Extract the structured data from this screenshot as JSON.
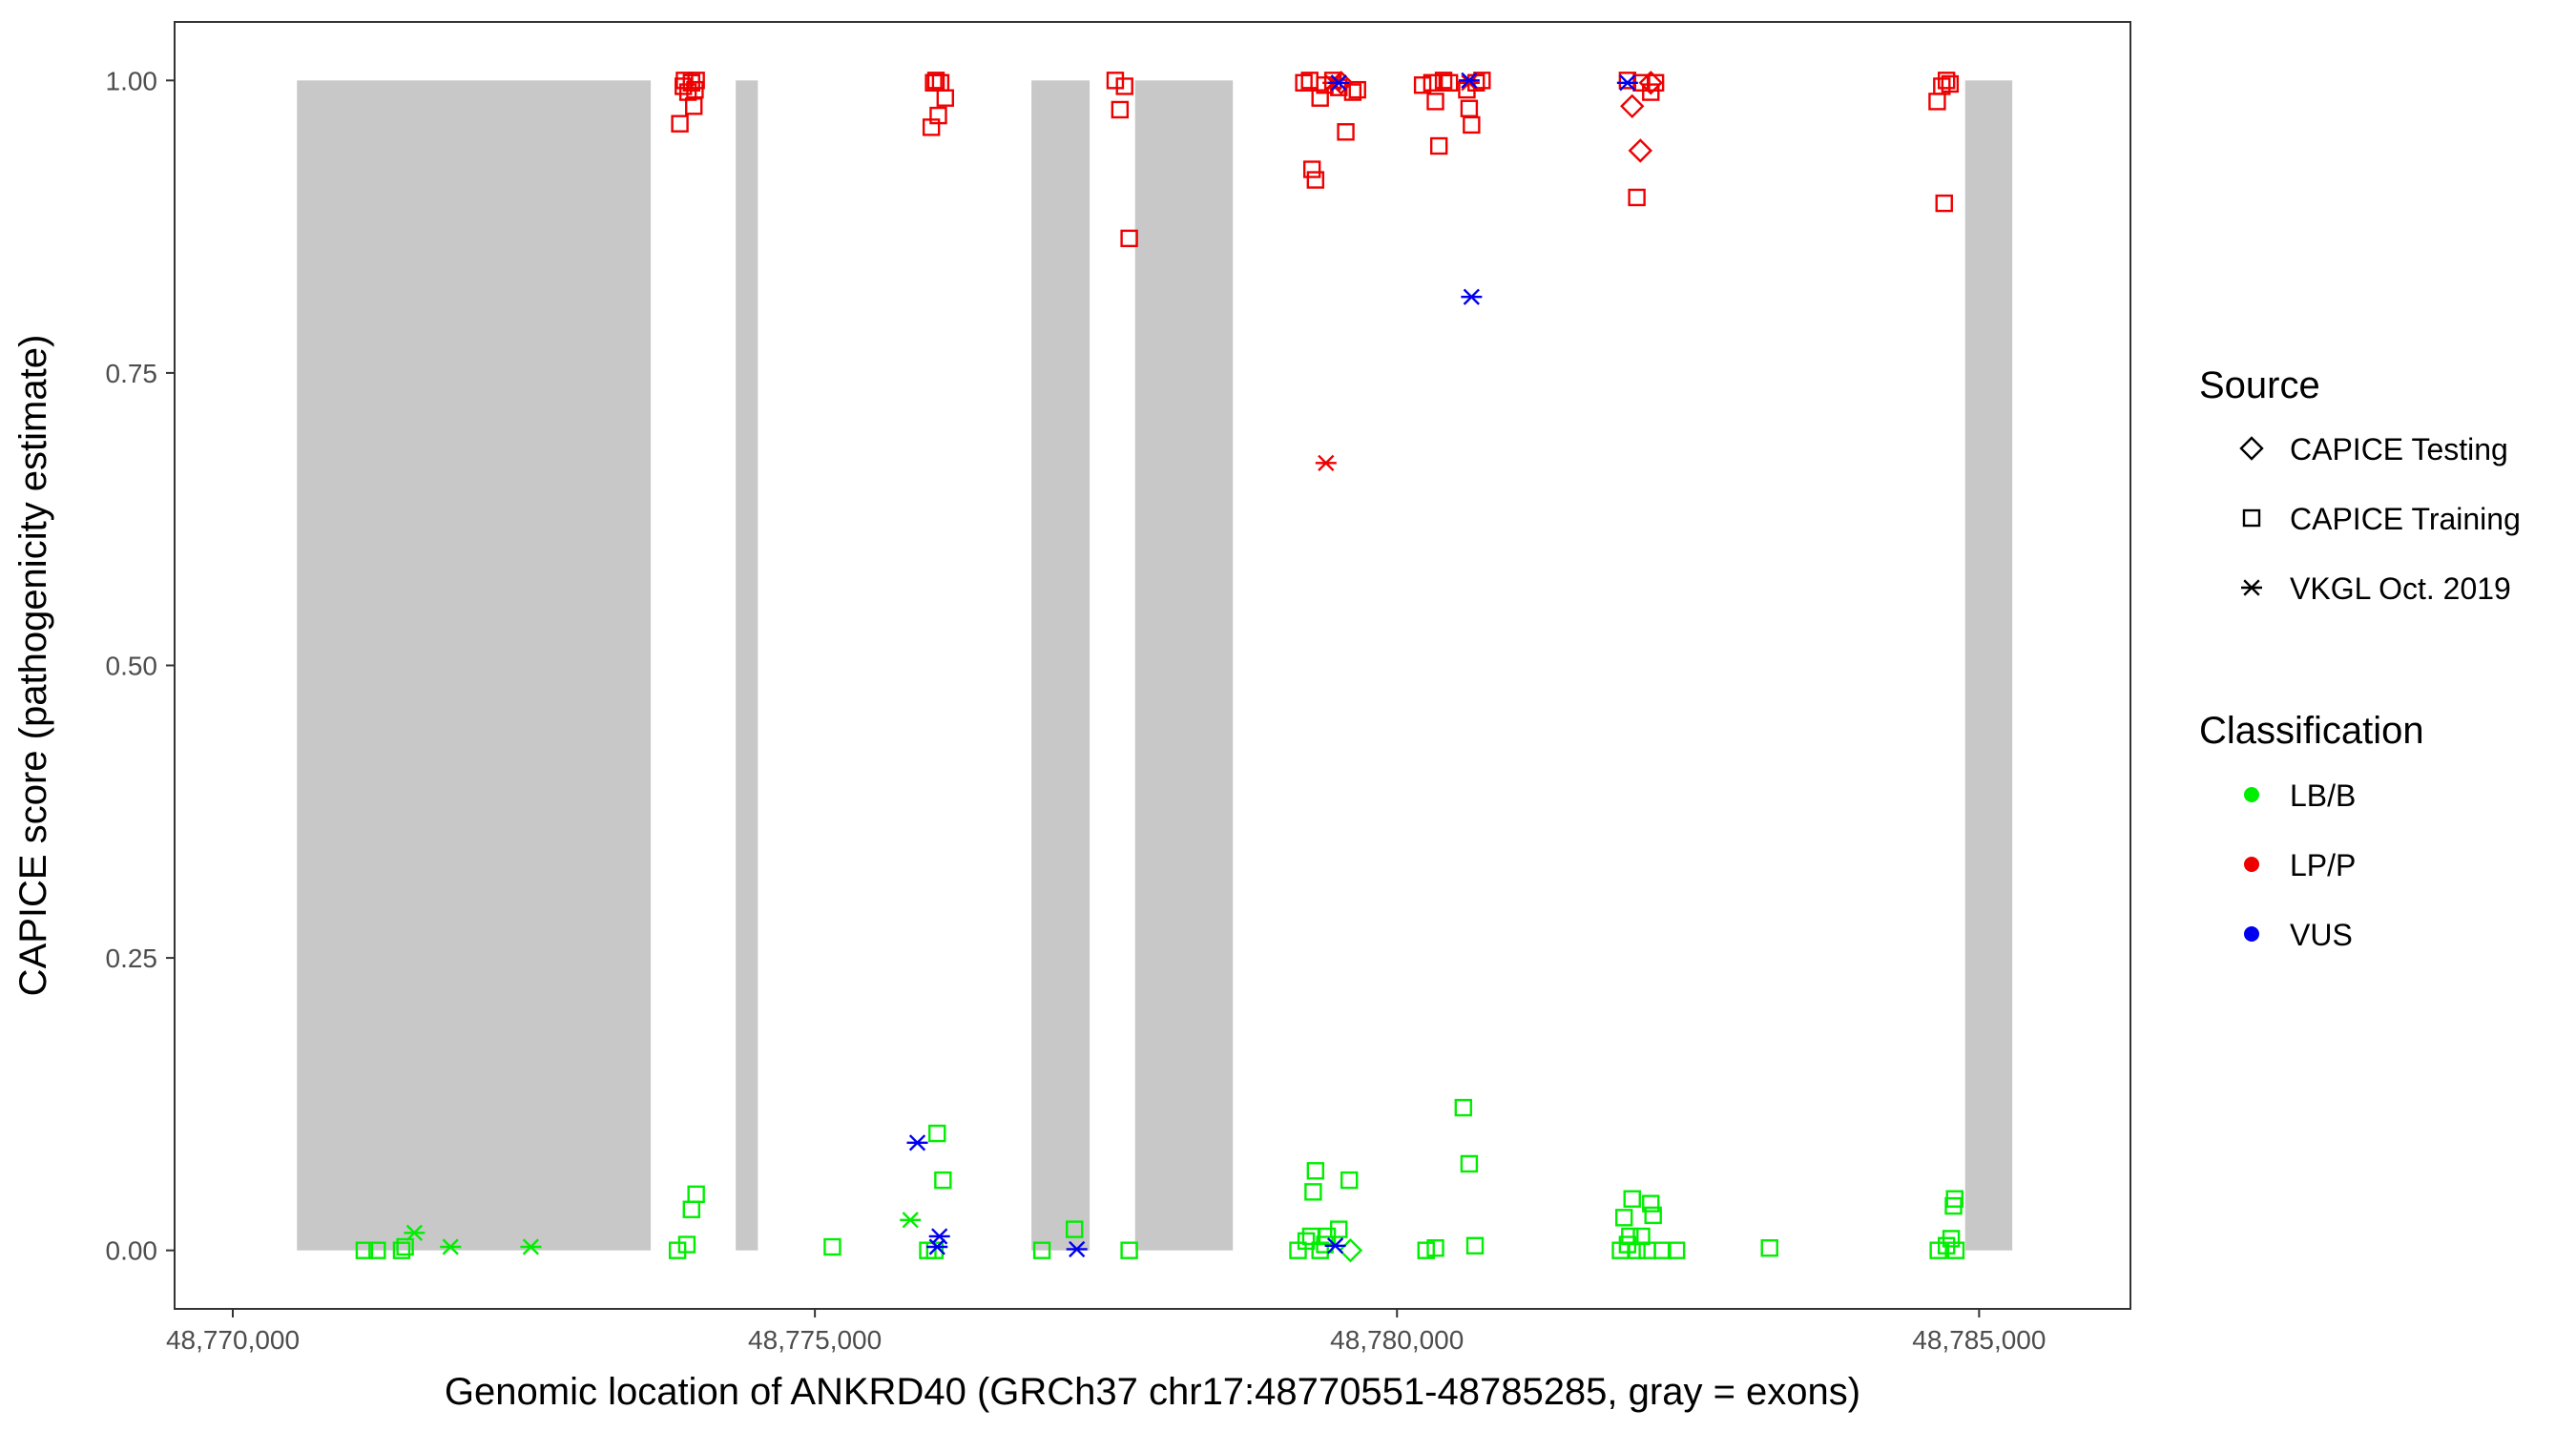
{
  "chart_data": {
    "type": "scatter",
    "title": "",
    "xlabel": "Genomic location of ANKRD40 (GRCh37 chr17:48770551-48785285, gray = exons)",
    "ylabel": "CAPICE score (pathogenicity estimate)",
    "xlim": [
      48769500,
      48786300
    ],
    "ylim": [
      -0.05,
      1.05
    ],
    "x_ticks": [
      48770000,
      48775000,
      48780000,
      48785000
    ],
    "x_tick_labels": [
      "48,770,000",
      "48,775,000",
      "48,780,000",
      "48,785,000"
    ],
    "y_ticks": [
      0,
      0.25,
      0.5,
      0.75,
      1.0
    ],
    "y_tick_labels": [
      "0.00",
      "0.25",
      "0.50",
      "0.75",
      "1.00"
    ],
    "grid": false,
    "exons": [
      [
        48770551,
        48773590
      ],
      [
        48774320,
        48774510
      ],
      [
        48776860,
        48777360
      ],
      [
        48777750,
        48778590
      ],
      [
        48784880,
        48785285
      ]
    ],
    "colors": {
      "LB/B": "#00ee00",
      "LP/P": "#ee0000",
      "VUS": "#0000ee",
      "exon": "#c8c8c8"
    },
    "legend": {
      "placement": "right",
      "source_title": "Source",
      "source_items": [
        {
          "label": "CAPICE Testing",
          "shape": "diamond"
        },
        {
          "label": "CAPICE Training",
          "shape": "square"
        },
        {
          "label": "VKGL Oct. 2019",
          "shape": "asterisk"
        }
      ],
      "class_title": "Classification",
      "class_items": [
        {
          "label": "LB/B",
          "color": "#00ee00"
        },
        {
          "label": "LP/P",
          "color": "#ee0000"
        },
        {
          "label": "VUS",
          "color": "#0000ee"
        }
      ]
    },
    "series": [
      {
        "source": "CAPICE Training",
        "classification": "LB/B",
        "points": [
          [
            48771130,
            0.0
          ],
          [
            48771240,
            0.0
          ],
          [
            48771450,
            0.0
          ],
          [
            48771480,
            0.003
          ],
          [
            48773820,
            0.0
          ],
          [
            48773900,
            0.005
          ],
          [
            48773940,
            0.035
          ],
          [
            48773980,
            0.048
          ],
          [
            48775150,
            0.003
          ],
          [
            48775970,
            0.0
          ],
          [
            48776030,
            0.0
          ],
          [
            48776050,
            0.1
          ],
          [
            48776100,
            0.06
          ],
          [
            48776950,
            0.0
          ],
          [
            48777230,
            0.018
          ],
          [
            48777700,
            0.0
          ],
          [
            48779150,
            0.0
          ],
          [
            48779220,
            0.008
          ],
          [
            48779260,
            0.012
          ],
          [
            48779280,
            0.05
          ],
          [
            48779300,
            0.068
          ],
          [
            48779340,
            0.0
          ],
          [
            48779380,
            0.005
          ],
          [
            48779400,
            0.012
          ],
          [
            48779500,
            0.018
          ],
          [
            48779590,
            0.06
          ],
          [
            48780250,
            0.0
          ],
          [
            48780330,
            0.002
          ],
          [
            48780570,
            0.122
          ],
          [
            48780620,
            0.074
          ],
          [
            48780670,
            0.004
          ],
          [
            48781920,
            0.0
          ],
          [
            48781950,
            0.028
          ],
          [
            48781980,
            0.005
          ],
          [
            48782000,
            0.012
          ],
          [
            48782020,
            0.044
          ],
          [
            48782060,
            0.0
          ],
          [
            48782100,
            0.012
          ],
          [
            48782150,
            0.0
          ],
          [
            48782180,
            0.04
          ],
          [
            48782200,
            0.03
          ],
          [
            48782280,
            0.0
          ],
          [
            48782400,
            0.0
          ],
          [
            48783200,
            0.002
          ],
          [
            48784650,
            0.0
          ],
          [
            48784720,
            0.004
          ],
          [
            48784760,
            0.01
          ],
          [
            48784780,
            0.038
          ],
          [
            48784790,
            0.044
          ],
          [
            48784800,
            0.0
          ]
        ]
      },
      {
        "source": "CAPICE Training",
        "classification": "LP/P",
        "points": [
          [
            48773840,
            0.963
          ],
          [
            48773870,
            0.995
          ],
          [
            48773880,
            1.0
          ],
          [
            48773910,
            0.99
          ],
          [
            48773940,
            0.998
          ],
          [
            48773960,
            0.978
          ],
          [
            48773970,
            0.992
          ],
          [
            48773980,
            1.0
          ],
          [
            48776000,
            0.96
          ],
          [
            48776020,
            0.998
          ],
          [
            48776040,
            1.0
          ],
          [
            48776060,
            0.97
          ],
          [
            48776080,
            0.998
          ],
          [
            48776120,
            0.985
          ],
          [
            48777580,
            1.0
          ],
          [
            48777620,
            0.975
          ],
          [
            48777660,
            0.995
          ],
          [
            48777700,
            0.865
          ],
          [
            48779200,
            0.998
          ],
          [
            48779250,
            1.0
          ],
          [
            48779270,
            0.924
          ],
          [
            48779300,
            0.915
          ],
          [
            48779340,
            0.985
          ],
          [
            48779380,
            0.996
          ],
          [
            48779450,
            1.0
          ],
          [
            48779500,
            0.994
          ],
          [
            48779560,
            0.956
          ],
          [
            48779620,
            0.99
          ],
          [
            48779660,
            0.992
          ],
          [
            48780220,
            0.996
          ],
          [
            48780300,
            0.998
          ],
          [
            48780330,
            0.982
          ],
          [
            48780360,
            0.944
          ],
          [
            48780400,
            1.0
          ],
          [
            48780450,
            0.998
          ],
          [
            48780600,
            0.992
          ],
          [
            48780620,
            0.976
          ],
          [
            48780640,
            0.962
          ],
          [
            48780680,
            0.998
          ],
          [
            48780730,
            1.0
          ],
          [
            48781980,
            1.0
          ],
          [
            48782060,
            0.9
          ],
          [
            48782100,
            0.998
          ],
          [
            48782180,
            0.99
          ],
          [
            48782220,
            0.998
          ],
          [
            48784640,
            0.982
          ],
          [
            48784680,
            0.995
          ],
          [
            48784700,
            0.895
          ],
          [
            48784720,
            1.0
          ],
          [
            48784750,
            0.997
          ]
        ]
      },
      {
        "source": "CAPICE Testing",
        "classification": "LB/B",
        "points": [
          [
            48779600,
            0.0
          ]
        ]
      },
      {
        "source": "CAPICE Testing",
        "classification": "LP/P",
        "points": [
          [
            48779520,
            0.998
          ],
          [
            48782020,
            0.978
          ],
          [
            48782090,
            0.94
          ],
          [
            48782180,
            0.998
          ]
        ]
      },
      {
        "source": "VKGL Oct. 2019",
        "classification": "LB/B",
        "points": [
          [
            48771560,
            0.015
          ],
          [
            48771870,
            0.003
          ],
          [
            48772560,
            0.003
          ],
          [
            48775820,
            0.026
          ]
        ]
      },
      {
        "source": "VKGL Oct. 2019",
        "classification": "LP/P",
        "points": [
          [
            48779390,
            0.673
          ],
          [
            48779450,
            0.998
          ],
          [
            48780620,
            0.998
          ]
        ]
      },
      {
        "source": "VKGL Oct. 2019",
        "classification": "VUS",
        "points": [
          [
            48775880,
            0.092
          ],
          [
            48776070,
            0.012
          ],
          [
            48776050,
            0.003
          ],
          [
            48777250,
            0.001
          ],
          [
            48779470,
            0.004
          ],
          [
            48779500,
            0.998
          ],
          [
            48780640,
            0.815
          ],
          [
            48780620,
            1.0
          ],
          [
            48781980,
            0.998
          ]
        ]
      }
    ]
  }
}
